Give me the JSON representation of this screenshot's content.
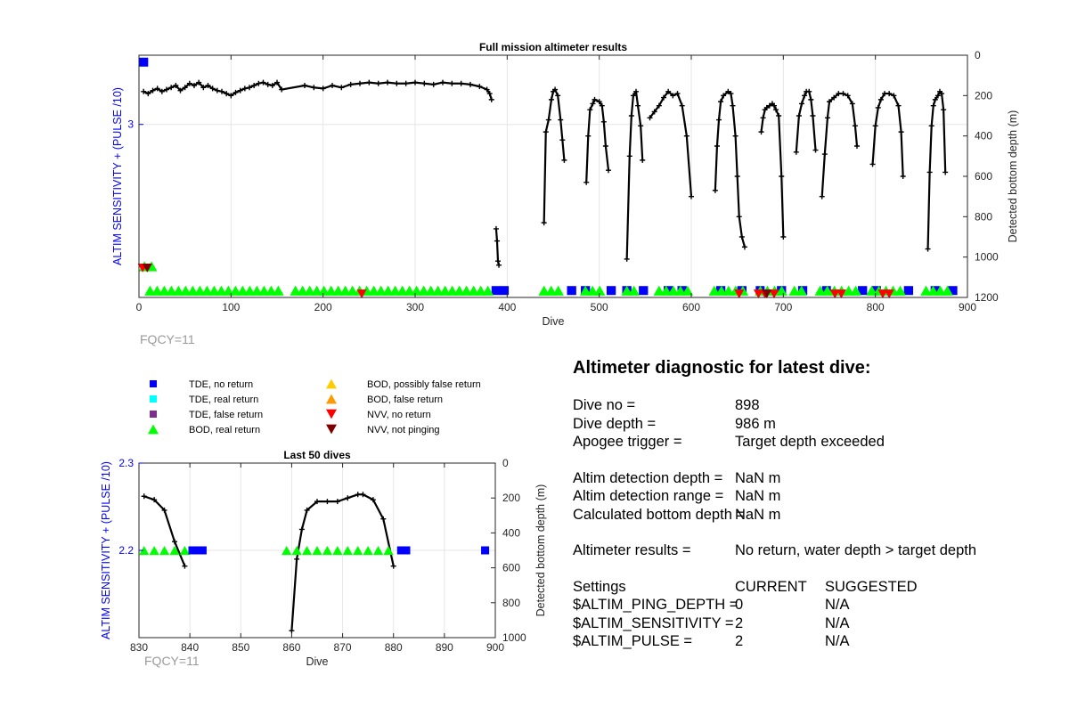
{
  "chart_data": [
    {
      "type": "scatter",
      "title": "Full mission altimeter results",
      "xlabel": "Dive",
      "ylabel_left": "ALTIM SENSITIVITY + (PULSE /10)",
      "ylabel_right": "Detected bottom depth (m)",
      "xlim": [
        0,
        900
      ],
      "ylim_left": [
        2.5,
        3.2
      ],
      "ylim_right": [
        1200,
        0
      ],
      "right_axis_reversed": true,
      "grid": true,
      "x_ticks": [
        0,
        100,
        200,
        300,
        400,
        500,
        600,
        700,
        800,
        900
      ],
      "y_ticks_left": [
        3
      ],
      "y_ticks_right": [
        0,
        200,
        400,
        600,
        800,
        1000,
        1200
      ],
      "annotation": "FQCY=11",
      "sensitivity_series": [
        {
          "name": "TDE, no return",
          "segments": [
            [
              0,
              10,
              3.18
            ],
            [
              383,
              388,
              2.52
            ],
            [
              392,
              398,
              2.52
            ],
            [
              465,
              475,
              2.52
            ],
            [
              480,
              490,
              2.52
            ],
            [
              508,
              518,
              2.52
            ],
            [
              525,
              535,
              2.52
            ],
            [
              543,
              553,
              2.52
            ],
            [
              570,
              580,
              2.52
            ],
            [
              585,
              595,
              2.52
            ],
            [
              627,
              637,
              2.52
            ],
            [
              650,
              660,
              2.52
            ],
            [
              670,
              675,
              2.52
            ],
            [
              693,
              703,
              2.52
            ],
            [
              716,
              726,
              2.52
            ],
            [
              742,
              750,
              2.52
            ],
            [
              781,
              791,
              2.52
            ],
            [
              796,
              806,
              2.52
            ],
            [
              831,
              841,
              2.52
            ],
            [
              860,
              868,
              2.52
            ],
            [
              879,
              889,
              2.52
            ]
          ]
        },
        {
          "name": "BOD, real return",
          "segments": [
            [
              6,
              16,
              2.59
            ],
            [
              12,
              153,
              2.52
            ],
            [
              170,
              380,
              2.52
            ],
            [
              440,
              462,
              2.52
            ],
            [
              485,
              508,
              2.52
            ],
            [
              530,
              545,
              2.52
            ],
            [
              565,
              600,
              2.52
            ],
            [
              625,
              660,
              2.52
            ],
            [
              675,
              700,
              2.52
            ],
            [
              712,
              727,
              2.52
            ],
            [
              740,
              780,
              2.52
            ],
            [
              796,
              830,
              2.52
            ],
            [
              855,
              880,
              2.52
            ]
          ]
        },
        {
          "name": "NVV, no return",
          "points": [
            [
              4,
              2.585
            ],
            [
              242,
              2.51
            ],
            [
              652,
              2.51
            ],
            [
              673,
              2.51
            ],
            [
              680,
              2.51
            ],
            [
              690,
              2.51
            ],
            [
              756,
              2.51
            ],
            [
              763,
              2.51
            ],
            [
              808,
              2.51
            ],
            [
              815,
              2.51
            ]
          ]
        },
        {
          "name": "NVV, not pinging",
          "points": [
            [
              9,
              2.585
            ],
            [
              682,
              2.51
            ]
          ]
        }
      ],
      "bottom_depth_series": {
        "name": "Detected bottom depth",
        "dives": [
          {
            "x": [
              5,
              10,
              15,
              20,
              25,
              30,
              35,
              40,
              45,
              50,
              55,
              60,
              65,
              70,
              75,
              80,
              85,
              90,
              95,
              100,
              105,
              110,
              115,
              120,
              125,
              130,
              135,
              140,
              145,
              150,
              155,
              180,
              190,
              200,
              210,
              220,
              230,
              240,
              250,
              260,
              270,
              280,
              290,
              300,
              310,
              320,
              330,
              340,
              350,
              360,
              370,
              378,
              381,
              383
            ],
            "y": [
              180,
              190,
              175,
              165,
              180,
              170,
              160,
              150,
              175,
              160,
              140,
              150,
              135,
              160,
              150,
              165,
              175,
              180,
              190,
              200,
              185,
              175,
              165,
              160,
              150,
              140,
              135,
              145,
              150,
              135,
              170,
              150,
              160,
              165,
              150,
              160,
              145,
              140,
              135,
              140,
              135,
              140,
              140,
              135,
              140,
              145,
              135,
              140,
              140,
              145,
              155,
              170,
              190,
              220
            ]
          },
          {
            "x": [
              388,
              389,
              390,
              391
            ],
            "y": [
              860,
              920,
              1020,
              1040
            ]
          },
          {
            "x": [
              440,
              442,
              445,
              448,
              450,
              452,
              455,
              458,
              460,
              462
            ],
            "y": [
              830,
              380,
              320,
              220,
              180,
              170,
              200,
              320,
              420,
              520
            ]
          },
          {
            "x": [
              486,
              488,
              490,
              493,
              495,
              500,
              503,
              505,
              507,
              510
            ],
            "y": [
              630,
              400,
              270,
              240,
              220,
              230,
              250,
              330,
              450,
              570
            ]
          },
          {
            "x": [
              530,
              533,
              535,
              537,
              540,
              542,
              545,
              547
            ],
            "y": [
              1010,
              500,
              300,
              200,
              180,
              250,
              350,
              520
            ]
          },
          {
            "x": [
              555,
              560,
              565,
              570,
              575,
              580,
              585,
              590,
              595,
              600
            ],
            "y": [
              310,
              280,
              250,
              210,
              180,
              200,
              190,
              250,
              400,
              700
            ]
          },
          {
            "x": [
              626,
              628,
              630,
              632,
              635,
              640,
              643,
              645,
              648,
              650,
              652,
              655,
              658
            ],
            "y": [
              670,
              450,
              320,
              230,
              200,
              180,
              190,
              250,
              400,
              600,
              800,
              900,
              950
            ]
          },
          {
            "x": [
              676,
              678,
              680,
              682,
              685,
              688,
              690,
              692,
              695,
              698,
              700
            ],
            "y": [
              380,
              310,
              270,
              260,
              250,
              240,
              250,
              270,
              300,
              600,
              900
            ]
          },
          {
            "x": [
              714,
              717,
              720,
              723,
              725,
              728,
              730,
              732,
              735
            ],
            "y": [
              480,
              300,
              240,
              200,
              180,
              180,
              220,
              300,
              470
            ]
          },
          {
            "x": [
              742,
              745,
              748,
              750,
              755,
              760,
              765,
              770,
              775,
              778,
              780
            ],
            "y": [
              700,
              490,
              310,
              230,
              210,
              190,
              190,
              200,
              240,
              350,
              450
            ]
          },
          {
            "x": [
              797,
              800,
              803,
              806,
              810,
              815,
              820,
              825,
              828,
              830
            ],
            "y": [
              540,
              350,
              260,
              220,
              190,
              190,
              200,
              250,
              380,
              600
            ]
          },
          {
            "x": [
              857,
              859,
              861,
              863,
              865,
              868,
              870,
              872,
              874,
              876
            ],
            "y": [
              960,
              580,
              350,
              250,
              220,
              200,
              180,
              190,
              270,
              580
            ]
          }
        ]
      }
    },
    {
      "type": "scatter",
      "title": "Last 50 dives",
      "xlabel": "Dive",
      "ylabel_left": "ALTIM SENSITIVITY + (PULSE /10)",
      "ylabel_right": "Detected bottom depth (m)",
      "xlim": [
        830,
        900
      ],
      "ylim_left": [
        2.1,
        2.3
      ],
      "ylim_right": [
        1000,
        0
      ],
      "right_axis_reversed": true,
      "grid": true,
      "x_ticks": [
        830,
        840,
        850,
        860,
        870,
        880,
        890,
        900
      ],
      "y_ticks_left": [
        2.2,
        2.3
      ],
      "y_ticks_right": [
        0,
        200,
        400,
        600,
        800,
        1000
      ],
      "annotation": "FQCY=11",
      "sensitivity_series": [
        {
          "name": "BOD, real return",
          "points": [
            [
              831,
              2.2
            ],
            [
              833,
              2.2
            ],
            [
              835,
              2.2
            ],
            [
              837,
              2.2
            ],
            [
              839,
              2.2
            ],
            [
              859,
              2.2
            ],
            [
              861,
              2.2
            ],
            [
              863,
              2.2
            ],
            [
              865,
              2.2
            ],
            [
              867,
              2.2
            ],
            [
              869,
              2.2
            ],
            [
              871,
              2.2
            ],
            [
              873,
              2.2
            ],
            [
              875,
              2.2
            ],
            [
              877,
              2.2
            ],
            [
              879,
              2.2
            ]
          ]
        },
        {
          "name": "TDE, no return",
          "points": [
            [
              840.5,
              2.2
            ],
            [
              841.5,
              2.2
            ],
            [
              842.5,
              2.2
            ],
            [
              881.5,
              2.2
            ],
            [
              882.5,
              2.2
            ],
            [
              898,
              2.2
            ]
          ]
        }
      ],
      "bottom_depth_series": {
        "name": "Detected bottom depth",
        "dives": [
          {
            "x": [
              831,
              833,
              835,
              837,
              839
            ],
            "y": [
              190,
              210,
              270,
              450,
              590
            ]
          },
          {
            "x": [
              860,
              861,
              862,
              863,
              865,
              867,
              869,
              871,
              873,
              874,
              876,
              878,
              880
            ],
            "y": [
              960,
              550,
              380,
              270,
              220,
              220,
              220,
              200,
              180,
              180,
              210,
              320,
              590
            ]
          }
        ]
      }
    }
  ],
  "legend": {
    "items": [
      {
        "label": "TDE, no return",
        "marker": "square",
        "color": "#0000ff"
      },
      {
        "label": "TDE, real return",
        "marker": "square",
        "color": "#00ffff"
      },
      {
        "label": "TDE, false return",
        "marker": "square",
        "color": "#7e2f8e"
      },
      {
        "label": "BOD, real return",
        "marker": "triangle-up",
        "color": "#00ff00"
      },
      {
        "label": "BOD, possibly false return",
        "marker": "triangle-up",
        "color": "#ffcc00"
      },
      {
        "label": "BOD, false return",
        "marker": "triangle-up",
        "color": "#ff9900"
      },
      {
        "label": "NVV, no return",
        "marker": "triangle-down",
        "color": "#ff0000"
      },
      {
        "label": "NVV, not pinging",
        "marker": "triangle-down",
        "color": "#800000"
      }
    ]
  },
  "diagnostic": {
    "title": "Altimeter diagnostic for latest dive:",
    "dive_no_label": "Dive no =",
    "dive_no_value": "898",
    "dive_depth_label": "Dive depth =",
    "dive_depth_value": "986 m",
    "apogee_label": "Apogee trigger =",
    "apogee_value": "Target depth exceeded",
    "altim_depth_label": "Altim detection depth =",
    "altim_depth_value": "NaN m",
    "altim_range_label": "Altim detection range =",
    "altim_range_value": "NaN m",
    "calc_bottom_label": "Calculated bottom depth =",
    "calc_bottom_value": "NaN m",
    "results_label": "Altimeter results =",
    "results_value": "No return, water depth > target depth",
    "settings_header": "Settings",
    "current_header": "CURRENT",
    "suggested_header": "SUGGESTED",
    "settings": [
      {
        "name": "$ALTIM_PING_DEPTH =",
        "current": "0",
        "suggested": "N/A"
      },
      {
        "name": "$ALTIM_SENSITIVITY =",
        "current": "2",
        "suggested": "N/A"
      },
      {
        "name": "$ALTIM_PULSE =",
        "current": "2",
        "suggested": "N/A"
      }
    ]
  },
  "colors": {
    "left_axis_label": "#0000ff",
    "depth_line": "#000000",
    "grid": "#e6e6e6",
    "annotation": "#9a9a9a"
  }
}
